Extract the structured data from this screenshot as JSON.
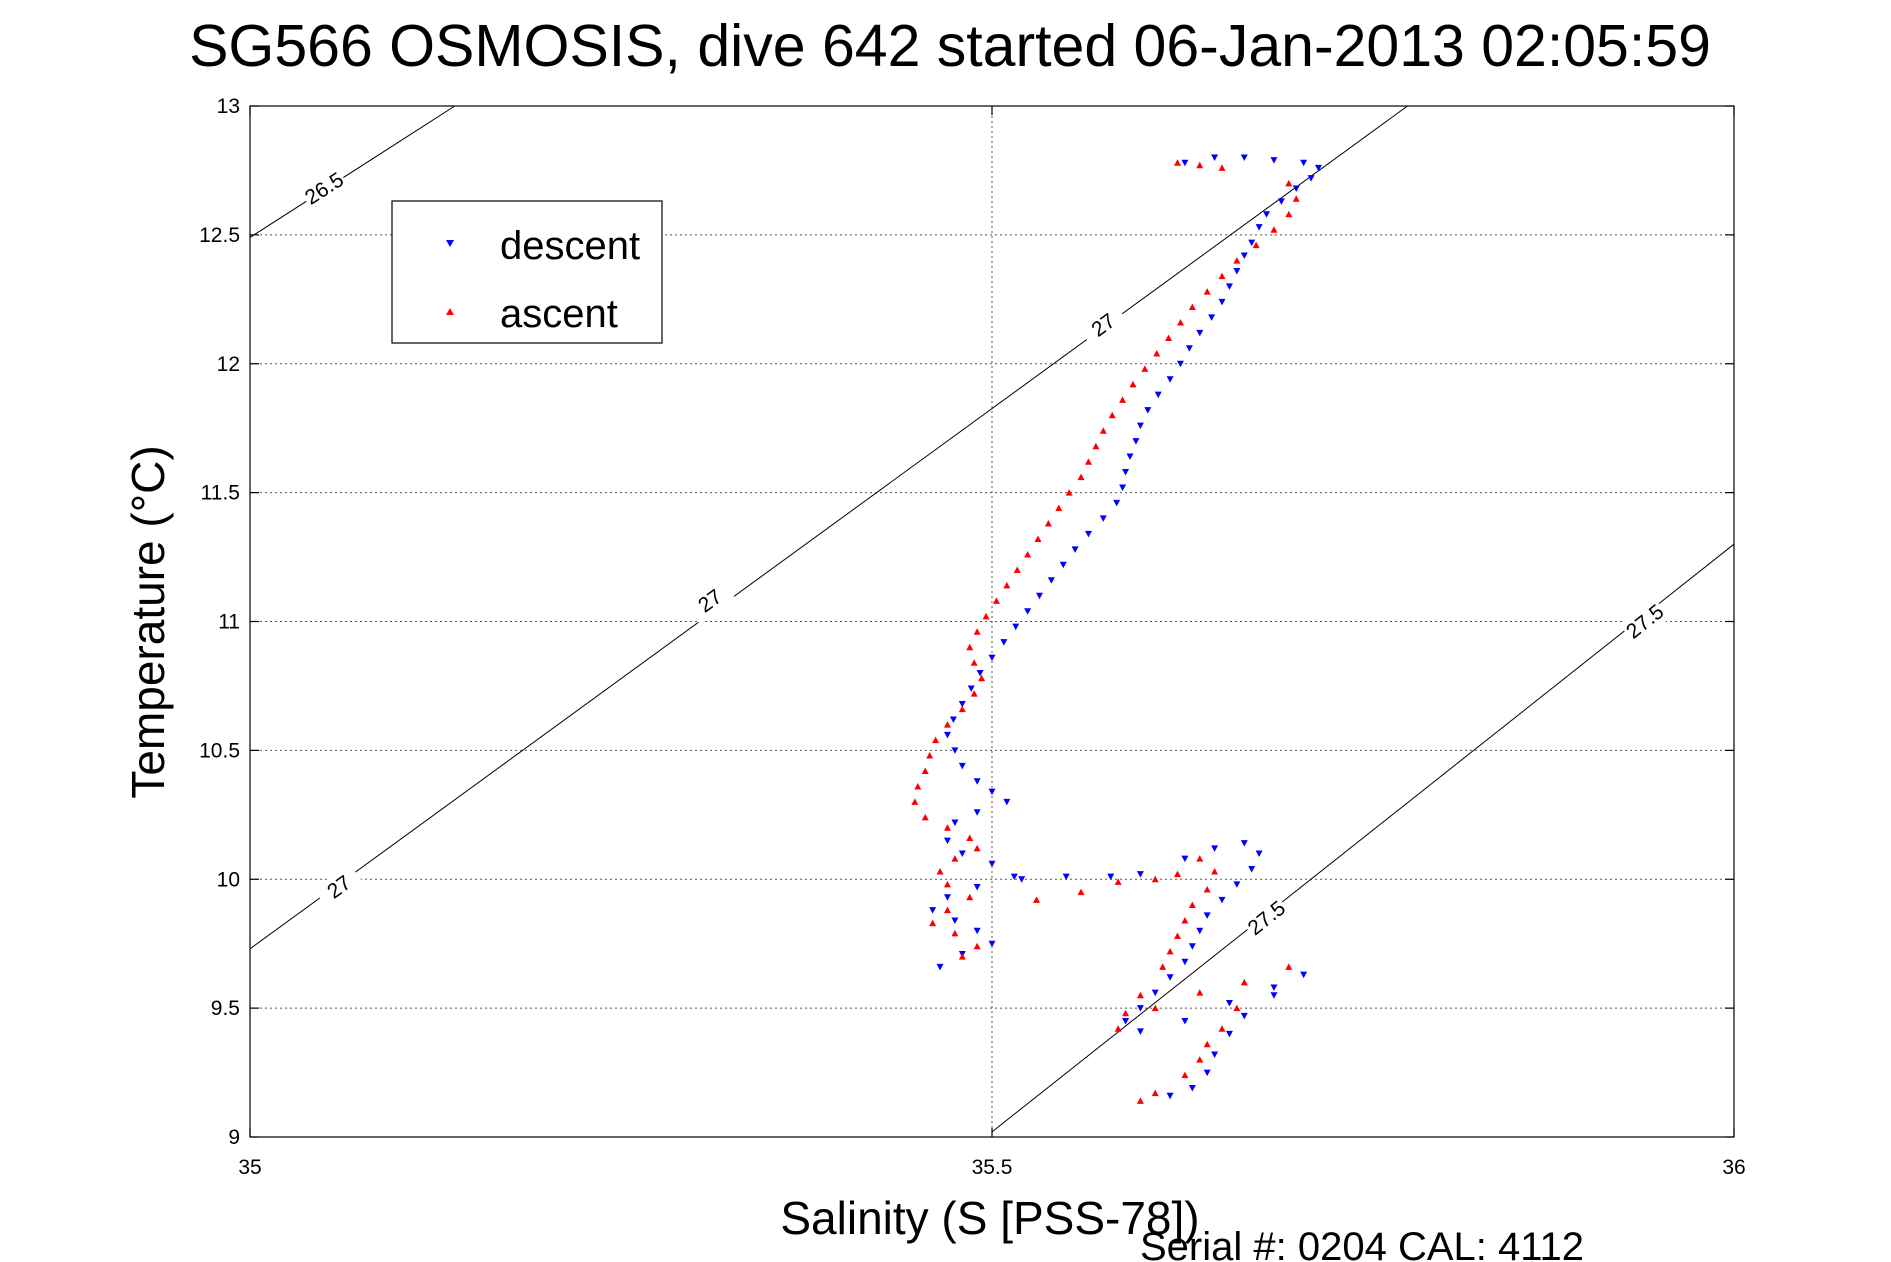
{
  "chart_data": {
    "type": "scatter",
    "title": "SG566 OSMOSIS, dive 642 started 06-Jan-2013 02:05:59",
    "xlabel": "Salinity (S [PSS-78])",
    "ylabel": "Temperature (°C)",
    "xlim": [
      35,
      36
    ],
    "ylim": [
      9,
      13
    ],
    "xticks": [
      35,
      35.5,
      36
    ],
    "yticks": [
      9,
      9.5,
      10,
      10.5,
      11,
      11.5,
      12,
      12.5,
      13
    ],
    "xtick_labels": [
      "35",
      "35.5",
      "36"
    ],
    "ytick_labels": [
      "9",
      "9.5",
      "10",
      "10.5",
      "11",
      "11.5",
      "12",
      "12.5",
      "13"
    ],
    "grid": true,
    "legend": {
      "position": "top-left"
    },
    "density_contours": [
      {
        "label": "26.5",
        "points": [
          [
            35.0,
            12.49
          ],
          [
            35.138,
            13.0
          ]
        ],
        "label_points": [
          [
            35.05,
            12.68
          ]
        ]
      },
      {
        "label": "27",
        "points": [
          [
            35.0,
            9.73
          ],
          [
            35.78,
            13.0
          ]
        ],
        "label_points": [
          [
            35.06,
            9.97
          ],
          [
            35.31,
            11.08
          ],
          [
            35.575,
            12.15
          ]
        ]
      },
      {
        "label": "27.5",
        "points": [
          [
            35.5,
            9.02
          ],
          [
            36.0,
            11.3
          ]
        ],
        "label_points": [
          [
            35.685,
            9.85
          ],
          [
            35.94,
            11.0
          ]
        ]
      }
    ],
    "series": [
      {
        "name": "descent",
        "color": "#0000ff",
        "marker": "triangle-down",
        "points": [
          [
            35.63,
            12.78
          ],
          [
            35.65,
            12.8
          ],
          [
            35.67,
            12.8
          ],
          [
            35.69,
            12.79
          ],
          [
            35.71,
            12.78
          ],
          [
            35.72,
            12.76
          ],
          [
            35.715,
            12.72
          ],
          [
            35.705,
            12.68
          ],
          [
            35.695,
            12.63
          ],
          [
            35.685,
            12.58
          ],
          [
            35.68,
            12.53
          ],
          [
            35.675,
            12.47
          ],
          [
            35.67,
            12.42
          ],
          [
            35.665,
            12.36
          ],
          [
            35.66,
            12.3
          ],
          [
            35.655,
            12.24
          ],
          [
            35.648,
            12.18
          ],
          [
            35.64,
            12.12
          ],
          [
            35.633,
            12.06
          ],
          [
            35.627,
            12.0
          ],
          [
            35.62,
            11.94
          ],
          [
            35.612,
            11.88
          ],
          [
            35.605,
            11.82
          ],
          [
            35.6,
            11.76
          ],
          [
            35.597,
            11.7
          ],
          [
            35.593,
            11.64
          ],
          [
            35.59,
            11.58
          ],
          [
            35.588,
            11.52
          ],
          [
            35.584,
            11.46
          ],
          [
            35.575,
            11.4
          ],
          [
            35.565,
            11.34
          ],
          [
            35.556,
            11.28
          ],
          [
            35.548,
            11.22
          ],
          [
            35.54,
            11.16
          ],
          [
            35.532,
            11.1
          ],
          [
            35.524,
            11.04
          ],
          [
            35.516,
            10.98
          ],
          [
            35.508,
            10.92
          ],
          [
            35.5,
            10.86
          ],
          [
            35.492,
            10.8
          ],
          [
            35.486,
            10.74
          ],
          [
            35.48,
            10.68
          ],
          [
            35.474,
            10.62
          ],
          [
            35.47,
            10.56
          ],
          [
            35.475,
            10.5
          ],
          [
            35.48,
            10.44
          ],
          [
            35.49,
            10.38
          ],
          [
            35.5,
            10.34
          ],
          [
            35.51,
            10.3
          ],
          [
            35.49,
            10.26
          ],
          [
            35.475,
            10.22
          ],
          [
            35.47,
            10.15
          ],
          [
            35.48,
            10.1
          ],
          [
            35.5,
            10.06
          ],
          [
            35.515,
            10.01
          ],
          [
            35.49,
            9.97
          ],
          [
            35.47,
            9.93
          ],
          [
            35.46,
            9.88
          ],
          [
            35.475,
            9.84
          ],
          [
            35.49,
            9.8
          ],
          [
            35.5,
            9.75
          ],
          [
            35.48,
            9.71
          ],
          [
            35.465,
            9.66
          ],
          [
            35.52,
            10.0
          ],
          [
            35.55,
            10.01
          ],
          [
            35.58,
            10.01
          ],
          [
            35.6,
            10.02
          ],
          [
            35.63,
            10.08
          ],
          [
            35.65,
            10.12
          ],
          [
            35.67,
            10.14
          ],
          [
            35.68,
            10.1
          ],
          [
            35.675,
            10.04
          ],
          [
            35.665,
            9.98
          ],
          [
            35.655,
            9.92
          ],
          [
            35.645,
            9.86
          ],
          [
            35.64,
            9.8
          ],
          [
            35.635,
            9.74
          ],
          [
            35.63,
            9.68
          ],
          [
            35.62,
            9.62
          ],
          [
            35.61,
            9.56
          ],
          [
            35.6,
            9.5
          ],
          [
            35.59,
            9.45
          ],
          [
            35.6,
            9.41
          ],
          [
            35.63,
            9.45
          ],
          [
            35.66,
            9.52
          ],
          [
            35.69,
            9.58
          ],
          [
            35.71,
            9.63
          ],
          [
            35.69,
            9.55
          ],
          [
            35.67,
            9.47
          ],
          [
            35.66,
            9.4
          ],
          [
            35.65,
            9.32
          ],
          [
            35.645,
            9.25
          ],
          [
            35.635,
            9.19
          ],
          [
            35.62,
            9.16
          ]
        ]
      },
      {
        "name": "ascent",
        "color": "#ff0000",
        "marker": "triangle-up",
        "points": [
          [
            35.625,
            12.78
          ],
          [
            35.64,
            12.77
          ],
          [
            35.655,
            12.76
          ],
          [
            35.7,
            12.7
          ],
          [
            35.705,
            12.64
          ],
          [
            35.7,
            12.58
          ],
          [
            35.69,
            12.52
          ],
          [
            35.678,
            12.46
          ],
          [
            35.665,
            12.4
          ],
          [
            35.655,
            12.34
          ],
          [
            35.645,
            12.28
          ],
          [
            35.635,
            12.22
          ],
          [
            35.627,
            12.16
          ],
          [
            35.619,
            12.1
          ],
          [
            35.611,
            12.04
          ],
          [
            35.603,
            11.98
          ],
          [
            35.595,
            11.92
          ],
          [
            35.588,
            11.86
          ],
          [
            35.581,
            11.8
          ],
          [
            35.575,
            11.74
          ],
          [
            35.57,
            11.68
          ],
          [
            35.565,
            11.62
          ],
          [
            35.56,
            11.56
          ],
          [
            35.552,
            11.5
          ],
          [
            35.545,
            11.44
          ],
          [
            35.538,
            11.38
          ],
          [
            35.531,
            11.32
          ],
          [
            35.524,
            11.26
          ],
          [
            35.517,
            11.2
          ],
          [
            35.51,
            11.14
          ],
          [
            35.503,
            11.08
          ],
          [
            35.496,
            11.02
          ],
          [
            35.49,
            10.96
          ],
          [
            35.485,
            10.9
          ],
          [
            35.488,
            10.84
          ],
          [
            35.493,
            10.78
          ],
          [
            35.488,
            10.72
          ],
          [
            35.48,
            10.66
          ],
          [
            35.47,
            10.6
          ],
          [
            35.462,
            10.54
          ],
          [
            35.458,
            10.48
          ],
          [
            35.455,
            10.42
          ],
          [
            35.45,
            10.36
          ],
          [
            35.448,
            10.3
          ],
          [
            35.455,
            10.24
          ],
          [
            35.47,
            10.2
          ],
          [
            35.485,
            10.16
          ],
          [
            35.49,
            10.12
          ],
          [
            35.475,
            10.08
          ],
          [
            35.465,
            10.03
          ],
          [
            35.47,
            9.98
          ],
          [
            35.485,
            9.93
          ],
          [
            35.47,
            9.88
          ],
          [
            35.46,
            9.83
          ],
          [
            35.475,
            9.79
          ],
          [
            35.49,
            9.74
          ],
          [
            35.48,
            9.7
          ],
          [
            35.53,
            9.92
          ],
          [
            35.56,
            9.95
          ],
          [
            35.585,
            9.99
          ],
          [
            35.61,
            10.0
          ],
          [
            35.625,
            10.02
          ],
          [
            35.64,
            10.08
          ],
          [
            35.65,
            10.03
          ],
          [
            35.645,
            9.96
          ],
          [
            35.635,
            9.9
          ],
          [
            35.63,
            9.84
          ],
          [
            35.625,
            9.78
          ],
          [
            35.62,
            9.72
          ],
          [
            35.615,
            9.66
          ],
          [
            35.6,
            9.55
          ],
          [
            35.59,
            9.48
          ],
          [
            35.585,
            9.42
          ],
          [
            35.61,
            9.5
          ],
          [
            35.64,
            9.56
          ],
          [
            35.67,
            9.6
          ],
          [
            35.7,
            9.66
          ],
          [
            35.665,
            9.5
          ],
          [
            35.655,
            9.42
          ],
          [
            35.645,
            9.36
          ],
          [
            35.64,
            9.3
          ],
          [
            35.63,
            9.24
          ],
          [
            35.61,
            9.17
          ],
          [
            35.6,
            9.14
          ]
        ]
      }
    ]
  },
  "legend_entries": [
    {
      "label": "descent",
      "color": "#0000ff",
      "marker": "triangle-down"
    },
    {
      "label": "ascent",
      "color": "#ff0000",
      "marker": "triangle-up"
    }
  ],
  "footer": {
    "text": "Serial #: 0204  CAL: 4112"
  }
}
